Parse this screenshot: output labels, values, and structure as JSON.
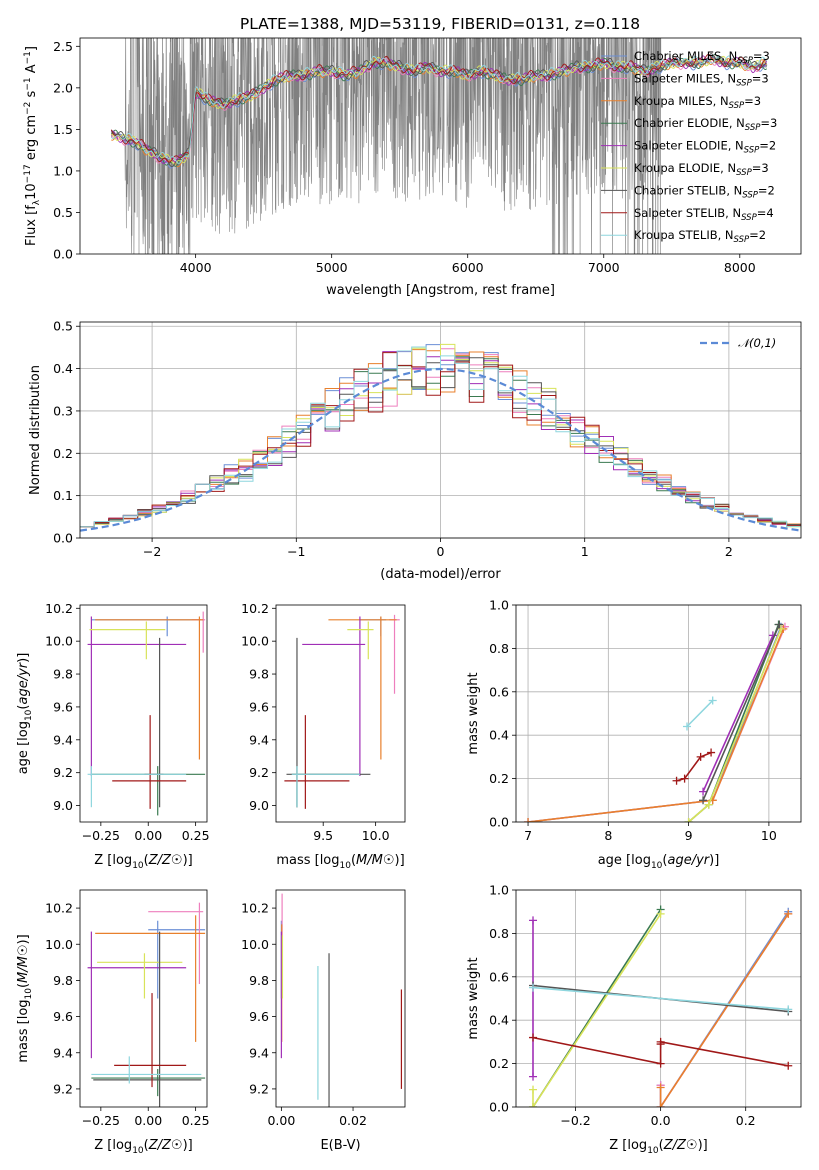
{
  "figure_title": "PLATE=1388, MJD=53119, FIBERID=0131, z=0.118",
  "models": [
    {
      "id": "m0",
      "name": "Chabrier MILES",
      "nssp": "3",
      "color": "#6b8fd6"
    },
    {
      "id": "m1",
      "name": "Salpeter MILES",
      "nssp": "3",
      "color": "#ee7fbd"
    },
    {
      "id": "m2",
      "name": "Kroupa MILES",
      "nssp": "3",
      "color": "#e8802d"
    },
    {
      "id": "m3",
      "name": "Chabrier ELODIE",
      "nssp": "3",
      "color": "#3a7a50"
    },
    {
      "id": "m4",
      "name": "Salpeter ELODIE",
      "nssp": "2",
      "color": "#a02fb6"
    },
    {
      "id": "m5",
      "name": "Kroupa ELODIE",
      "nssp": "3",
      "color": "#d8e35a"
    },
    {
      "id": "m6",
      "name": "Chabrier STELIB",
      "nssp": "2",
      "color": "#555555"
    },
    {
      "id": "m7",
      "name": "Salpeter STELIB",
      "nssp": "4",
      "color": "#a01818"
    },
    {
      "id": "m8",
      "name": "Kroupa STELIB",
      "nssp": "2",
      "color": "#8ed6de"
    }
  ],
  "legend_nssp_prefix": "N",
  "legend_nssp_sub": "SSP",
  "chart_data": [
    {
      "id": "spectrum",
      "type": "line",
      "xlabel": "wavelength [Angstrom, rest frame]",
      "ylabel_parts": [
        "Flux [f",
        "λ",
        "10",
        "−17",
        " erg cm",
        "−2",
        " s",
        "−1",
        " A",
        "−1",
        "]"
      ],
      "xlim": [
        3150,
        8450
      ],
      "ylim": [
        0,
        2.6
      ],
      "xticks": [
        4000,
        5000,
        6000,
        7000,
        8000
      ],
      "yticks": [
        0.0,
        0.5,
        1.0,
        1.5,
        2.0,
        2.5
      ],
      "data_color": "#808080",
      "model_curve": {
        "x": [
          3380,
          3450,
          3550,
          3650,
          3750,
          3850,
          3950,
          4000,
          4100,
          4200,
          4300,
          4400,
          4500,
          4600,
          4700,
          4800,
          4900,
          5000,
          5100,
          5200,
          5300,
          5400,
          5500,
          5600,
          5700,
          5800,
          5900,
          6000,
          6100,
          6200,
          6300,
          6400,
          6500,
          6600,
          6700,
          6800,
          6900,
          7000,
          7100,
          7200,
          7300,
          7400,
          7500,
          7600,
          7700,
          7800,
          7900,
          8000,
          8100,
          8200
        ],
        "y": [
          1.45,
          1.4,
          1.35,
          1.25,
          1.15,
          1.1,
          1.2,
          1.95,
          1.85,
          1.8,
          1.85,
          1.9,
          2.0,
          2.1,
          2.15,
          2.15,
          2.2,
          2.2,
          2.15,
          2.2,
          2.3,
          2.3,
          2.25,
          2.2,
          2.25,
          2.2,
          2.2,
          2.15,
          2.2,
          2.15,
          2.1,
          2.1,
          2.15,
          2.15,
          2.2,
          2.25,
          2.25,
          2.3,
          2.25,
          2.25,
          2.2,
          2.25,
          2.3,
          2.3,
          2.3,
          2.35,
          2.3,
          2.3,
          2.25,
          2.3
        ]
      }
    },
    {
      "id": "residuals",
      "type": "histogram",
      "xlabel": "(data-model)/error",
      "ylabel": "Normed distribution",
      "xlim": [
        -2.5,
        2.5
      ],
      "ylim": [
        0,
        0.51
      ],
      "xticks": [
        -2,
        -1,
        0,
        1,
        2
      ],
      "yticks": [
        0.0,
        0.1,
        0.2,
        0.3,
        0.4,
        0.5
      ],
      "bin_width": 0.1,
      "gaussian_label": "𝒩(0,1)",
      "gaussian_color": "#5b8ad6"
    },
    {
      "id": "age_vs_Z",
      "type": "errorbar",
      "xlabel": "Z [log10(Z/Z☉)]",
      "ylabel": "age  [log10(age/yr)]",
      "xlim": [
        -0.36,
        0.31
      ],
      "ylim": [
        8.9,
        10.22
      ],
      "xticks": [
        -0.25,
        0.0,
        0.25
      ],
      "yticks": [
        9.0,
        9.2,
        9.4,
        9.6,
        9.8,
        10.0,
        10.2
      ],
      "points": [
        {
          "m": "m0",
          "x": 0.1,
          "xerr": [
            0.4,
            0.18
          ],
          "y": 10.13,
          "yerr": [
            0.1,
            0.02
          ]
        },
        {
          "m": "m1",
          "x": 0.29,
          "xerr": [
            0.06,
            0.01
          ],
          "y": 10.13,
          "yerr": [
            0.2,
            0.05
          ]
        },
        {
          "m": "m2",
          "x": 0.27,
          "xerr": [
            0.55,
            0.02
          ],
          "y": 10.13,
          "yerr": [
            0.85,
            0.02
          ]
        },
        {
          "m": "m3",
          "x": 0.05,
          "xerr": [
            0.35,
            0.25
          ],
          "y": 9.19,
          "yerr": [
            0.25,
            0.05
          ]
        },
        {
          "m": "m4",
          "x": -0.3,
          "xerr": [
            0.02,
            0.5
          ],
          "y": 9.98,
          "yerr": [
            0.8,
            0.17
          ]
        },
        {
          "m": "m5",
          "x": -0.01,
          "xerr": [
            0.3,
            0.1
          ],
          "y": 10.07,
          "yerr": [
            0.18,
            0.05
          ]
        },
        {
          "m": "m6",
          "x": 0.06,
          "xerr": [
            0.08,
            0.02
          ],
          "y": 9.19,
          "yerr": [
            0.2,
            0.83
          ]
        },
        {
          "m": "m7",
          "x": 0.01,
          "xerr": [
            0.2,
            0.19
          ],
          "y": 9.15,
          "yerr": [
            0.17,
            0.4
          ]
        },
        {
          "m": "m8",
          "x": -0.3,
          "xerr": [
            0.02,
            0.5
          ],
          "y": 9.19,
          "yerr": [
            0.2,
            0.05
          ]
        }
      ]
    },
    {
      "id": "age_vs_mass",
      "type": "errorbar",
      "xlabel": "mass [log10(M/M☉)]",
      "ylabel": "",
      "xlim": [
        9.05,
        10.28
      ],
      "ylim": [
        8.9,
        10.22
      ],
      "xticks": [
        9.5,
        10.0
      ],
      "yticks": [
        9.0,
        9.2,
        9.4,
        9.6,
        9.8,
        10.0,
        10.2
      ],
      "points": [
        {
          "m": "m0",
          "x": 10.05,
          "xerr": [
            0.2,
            0.05
          ],
          "y": 10.13,
          "yerr": [
            0.1,
            0.02
          ]
        },
        {
          "m": "m1",
          "x": 10.18,
          "xerr": [
            0.05,
            0.05
          ],
          "y": 10.13,
          "yerr": [
            0.45,
            0.03
          ]
        },
        {
          "m": "m2",
          "x": 10.05,
          "xerr": [
            0.5,
            0.15
          ],
          "y": 10.13,
          "yerr": [
            0.85,
            0.02
          ]
        },
        {
          "m": "m3",
          "x": 9.25,
          "xerr": [
            0.05,
            0.6
          ],
          "y": 9.19,
          "yerr": [
            0.2,
            0.05
          ]
        },
        {
          "m": "m4",
          "x": 9.85,
          "xerr": [
            0.55,
            0.05
          ],
          "y": 9.98,
          "yerr": [
            0.8,
            0.17
          ]
        },
        {
          "m": "m5",
          "x": 9.93,
          "xerr": [
            0.2,
            0.05
          ],
          "y": 10.07,
          "yerr": [
            0.18,
            0.05
          ]
        },
        {
          "m": "m6",
          "x": 9.25,
          "xerr": [
            0.1,
            0.7
          ],
          "y": 9.19,
          "yerr": [
            0.2,
            0.83
          ]
        },
        {
          "m": "m7",
          "x": 9.33,
          "xerr": [
            0.2,
            0.42
          ],
          "y": 9.15,
          "yerr": [
            0.17,
            0.4
          ]
        },
        {
          "m": "m8",
          "x": 9.25,
          "xerr": [
            0.05,
            0.6
          ],
          "y": 9.19,
          "yerr": [
            0.2,
            0.05
          ]
        }
      ]
    },
    {
      "id": "weight_vs_age",
      "type": "line",
      "xlabel": "age  [log10(age/yr)]",
      "ylabel": "mass weight",
      "xlim": [
        6.85,
        10.4
      ],
      "ylim": [
        0,
        1.0
      ],
      "xticks": [
        7,
        8,
        9,
        10
      ],
      "yticks": [
        0.0,
        0.2,
        0.4,
        0.6,
        0.8,
        1.0
      ],
      "series": [
        {
          "m": "m0",
          "x": [
            7.0,
            9.3,
            10.15
          ],
          "y": [
            0.0,
            0.1,
            0.9
          ]
        },
        {
          "m": "m1",
          "x": [
            7.0,
            9.3,
            10.2
          ],
          "y": [
            0.0,
            0.1,
            0.9
          ]
        },
        {
          "m": "m2",
          "x": [
            7.0,
            9.3,
            10.18
          ],
          "y": [
            0.0,
            0.1,
            0.89
          ]
        },
        {
          "m": "m3",
          "x": [
            9.0,
            9.25,
            10.12
          ],
          "y": [
            0.0,
            0.08,
            0.91
          ]
        },
        {
          "m": "m4",
          "x": [
            9.18,
            10.05
          ],
          "y": [
            0.14,
            0.86
          ]
        },
        {
          "m": "m5",
          "x": [
            9.0,
            9.25,
            10.15
          ],
          "y": [
            0.0,
            0.08,
            0.89
          ]
        },
        {
          "m": "m6",
          "x": [
            9.18,
            10.13
          ],
          "y": [
            0.1,
            0.91
          ]
        },
        {
          "m": "m7",
          "x": [
            8.85,
            8.95,
            9.15,
            9.28
          ],
          "y": [
            0.19,
            0.2,
            0.3,
            0.32
          ]
        },
        {
          "m": "m8",
          "x": [
            8.98,
            9.3
          ],
          "y": [
            0.44,
            0.56
          ]
        }
      ]
    },
    {
      "id": "mass_vs_Z",
      "type": "errorbar",
      "xlabel": "Z [log10(Z/Z☉)]",
      "ylabel": "mass [log10(M/M☉)]",
      "xlim": [
        -0.36,
        0.31
      ],
      "ylim": [
        9.1,
        10.3
      ],
      "xticks": [
        -0.25,
        0.0,
        0.25
      ],
      "yticks": [
        9.2,
        9.4,
        9.6,
        9.8,
        10.0,
        10.2
      ],
      "points": [
        {
          "m": "m0",
          "x": 0.05,
          "xerr": [
            0.05,
            0.25
          ],
          "y": 10.08,
          "yerr": [
            0.38,
            0.05
          ]
        },
        {
          "m": "m1",
          "x": 0.27,
          "xerr": [
            0.27,
            0.02
          ],
          "y": 10.18,
          "yerr": [
            0.4,
            0.05
          ]
        },
        {
          "m": "m2",
          "x": 0.25,
          "xerr": [
            0.53,
            0.05
          ],
          "y": 10.06,
          "yerr": [
            0.6,
            0.1
          ]
        },
        {
          "m": "m3",
          "x": 0.05,
          "xerr": [
            0.35,
            0.25
          ],
          "y": 9.26,
          "yerr": [
            0.1,
            0.05
          ]
        },
        {
          "m": "m4",
          "x": -0.3,
          "xerr": [
            0.02,
            0.5
          ],
          "y": 9.87,
          "yerr": [
            0.5,
            0.2
          ]
        },
        {
          "m": "m5",
          "x": -0.02,
          "xerr": [
            0.25,
            0.2
          ],
          "y": 9.9,
          "yerr": [
            0.2,
            0.05
          ]
        },
        {
          "m": "m6",
          "x": 0.06,
          "xerr": [
            0.35,
            0.22
          ],
          "y": 9.25,
          "yerr": [
            0.15,
            0.82
          ]
        },
        {
          "m": "m7",
          "x": 0.02,
          "xerr": [
            0.2,
            0.18
          ],
          "y": 9.33,
          "yerr": [
            0.12,
            0.4
          ]
        },
        {
          "m": "m8",
          "x": -0.1,
          "xerr": [
            0.2,
            0.38
          ],
          "y": 9.28,
          "yerr": [
            0.05,
            0.1
          ]
        }
      ]
    },
    {
      "id": "mass_vs_EBV",
      "type": "errorbar",
      "xlabel": "E(B-V)",
      "ylabel": "",
      "xlim": [
        -0.0015,
        0.0345
      ],
      "ylim": [
        9.1,
        10.3
      ],
      "xticks": [
        0.0,
        0.02
      ],
      "yticks": [
        9.2,
        9.4,
        9.6,
        9.8,
        10.0,
        10.2
      ],
      "points": [
        {
          "m": "m0",
          "x": 0.0,
          "xerr": [
            0,
            0
          ],
          "y": 10.08,
          "yerr": [
            0.38,
            0.05
          ]
        },
        {
          "m": "m1",
          "x": 0.0002,
          "xerr": [
            0,
            0
          ],
          "y": 10.18,
          "yerr": [
            0.4,
            0.1
          ]
        },
        {
          "m": "m2",
          "x": 0.0001,
          "xerr": [
            0,
            0
          ],
          "y": 10.06,
          "yerr": [
            0.6,
            0.05
          ]
        },
        {
          "m": "m4",
          "x": 0.0,
          "xerr": [
            0,
            0
          ],
          "y": 9.87,
          "yerr": [
            0.5,
            0.2
          ]
        },
        {
          "m": "m5",
          "x": 0.0003,
          "xerr": [
            0,
            0
          ],
          "y": 9.9,
          "yerr": [
            0.2,
            0.15
          ]
        },
        {
          "m": "m8",
          "x": 0.0102,
          "xerr": [
            0,
            0
          ],
          "y": 9.5,
          "yerr": [
            0.36,
            0.38
          ]
        },
        {
          "m": "m6",
          "x": 0.0133,
          "xerr": [
            0,
            0
          ],
          "y": 9.5,
          "yerr": [
            0.4,
            0.45
          ]
        },
        {
          "m": "m7",
          "x": 0.0335,
          "xerr": [
            0,
            0
          ],
          "y": 9.5,
          "yerr": [
            0.3,
            0.25
          ]
        }
      ]
    },
    {
      "id": "weight_vs_Z",
      "type": "line",
      "xlabel": "Z [log10(Z/Z☉)]",
      "ylabel": "mass weight",
      "xlim": [
        -0.34,
        0.33
      ],
      "ylim": [
        0,
        1.0
      ],
      "xticks": [
        -0.2,
        0.0,
        0.2
      ],
      "yticks": [
        0.0,
        0.2,
        0.4,
        0.6,
        0.8,
        1.0
      ],
      "series": [
        {
          "m": "m0",
          "x": [
            0.0,
            0.0,
            0.3
          ],
          "y": [
            0.1,
            0.0,
            0.9
          ]
        },
        {
          "m": "m1",
          "x": [
            0.0,
            0.0,
            0.3
          ],
          "y": [
            0.1,
            0.0,
            0.89
          ]
        },
        {
          "m": "m2",
          "x": [
            0.0,
            0.0,
            0.3
          ],
          "y": [
            0.09,
            0.0,
            0.89
          ]
        },
        {
          "m": "m3",
          "x": [
            -0.3,
            0.0
          ],
          "y": [
            0.0,
            0.91
          ]
        },
        {
          "m": "m4",
          "x": [
            -0.3,
            -0.3
          ],
          "y": [
            0.14,
            0.86
          ]
        },
        {
          "m": "m5",
          "x": [
            -0.3,
            -0.3,
            0.0
          ],
          "y": [
            0.08,
            0.0,
            0.89
          ]
        },
        {
          "m": "m6",
          "x": [
            -0.3,
            0.3
          ],
          "y": [
            0.56,
            0.44
          ]
        },
        {
          "m": "m7",
          "x": [
            -0.3,
            0.0,
            0.0,
            0.0,
            0.3
          ],
          "y": [
            0.32,
            0.2,
            0.29,
            0.3,
            0.19
          ]
        },
        {
          "m": "m8",
          "x": [
            -0.3,
            0.3
          ],
          "y": [
            0.55,
            0.45
          ]
        }
      ]
    }
  ]
}
